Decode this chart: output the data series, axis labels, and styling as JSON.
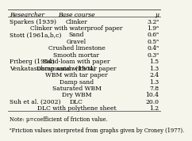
{
  "title_row": [
    "Researcher",
    "Base course",
    "μ"
  ],
  "rows": [
    [
      "Sparkes (1939)",
      "Clinker",
      "3.2ᵃ"
    ],
    [
      "",
      "Clinker with waterproof paper",
      "1.9ᵃ"
    ],
    [
      "Stott (1961a,b,c)",
      "Sand",
      "0.6ᵃ"
    ],
    [
      "",
      "Gravel",
      "0.5ᵃ"
    ],
    [
      "",
      "Crushed limestone",
      "0.4ᵃ"
    ],
    [
      "",
      "Smooth mortar",
      "0.3ᵃ"
    ],
    [
      "Friberg (1954)",
      "Sand-loam with paper",
      "1.5"
    ],
    [
      "Venkatasubramanian (1964)",
      "Damp sand with tar paper",
      "1.3"
    ],
    [
      "",
      "WBM with tar paper",
      "2.4"
    ],
    [
      "",
      "Damp sand",
      "1.3"
    ],
    [
      "",
      "Saturated WBM",
      "7.8"
    ],
    [
      "",
      "Dry WBM",
      "10.4"
    ],
    [
      "Suh et al. (2002)",
      "DLC",
      "20.0"
    ],
    [
      "",
      "DLC with polythene sheet",
      "1.2"
    ]
  ],
  "note1": "Note: μ=coefficient of friction value.",
  "note2": "ᵃFriction values interpreted from graphs given by Croney (1977).",
  "bg_color": "#f5f5eb",
  "header_line_color": "#555555",
  "font_size": 5.5,
  "header_font_size": 5.5
}
